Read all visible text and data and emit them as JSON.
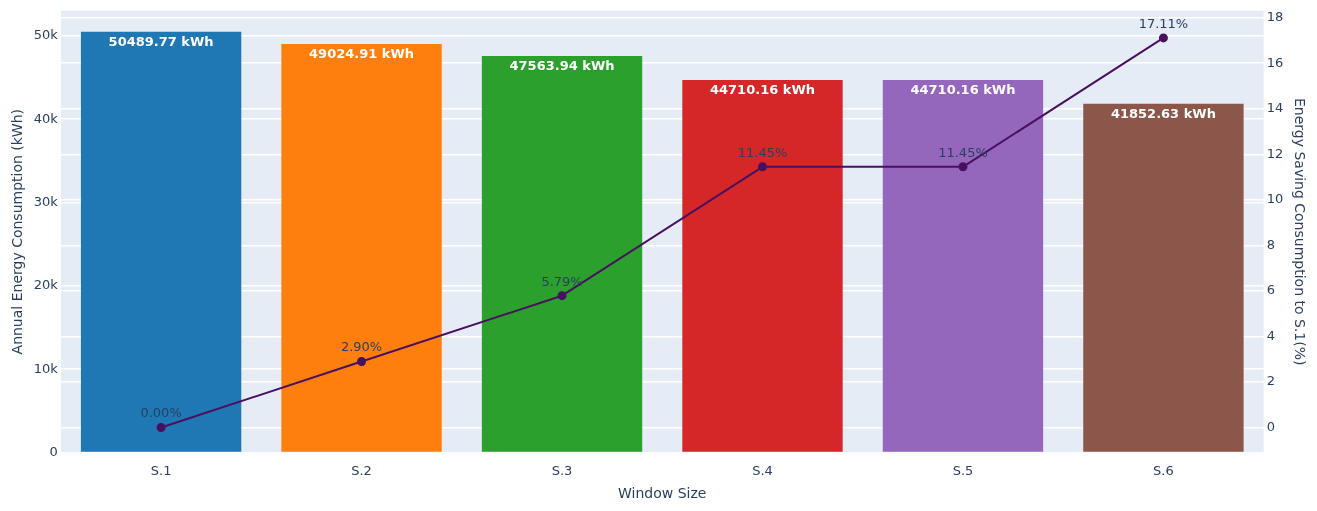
{
  "chart_data": {
    "type": "bar",
    "xlabel": "Window Size",
    "ylabel": "Annual Energy Consumption (kWh)",
    "y2label": "Energy Saving Consumption to S.1(%)",
    "categories": [
      "S.1",
      "S.2",
      "S.3",
      "S.4",
      "S.5",
      "S.6"
    ],
    "series": [
      {
        "colors": [
          "#1f77b4",
          "#ff7f0e",
          "#2ca02c",
          "#d62728",
          "#9467bd",
          "#8c564b"
        ],
        "values": [
          50489.77,
          49024.91,
          47563.94,
          44710.16,
          44710.16,
          41852.63
        ],
        "value_labels": [
          "50489.77 kWh",
          "49024.91 kWh",
          "47563.94 kWh",
          "44710.16 kWh",
          "44710.16 kWh",
          "41852.63 kWh"
        ]
      },
      {
        "type": "line",
        "axis": "y2",
        "color": "#4a1060",
        "values": [
          0.0,
          2.9,
          5.79,
          11.45,
          11.45,
          17.11
        ],
        "value_labels": [
          "0.00%",
          "2.90%",
          "5.79%",
          "11.45%",
          "11.45%",
          "17.11%"
        ]
      }
    ],
    "ylim": [
      0,
      53000
    ],
    "yticks": [
      {
        "value": 0,
        "label": "0"
      },
      {
        "value": 10000,
        "label": "10k"
      },
      {
        "value": 20000,
        "label": "20k"
      },
      {
        "value": 30000,
        "label": "30k"
      },
      {
        "value": 40000,
        "label": "40k"
      },
      {
        "value": 50000,
        "label": "50k"
      }
    ],
    "y2lim": [
      -1.1,
      18.3
    ],
    "y2ticks": [
      0,
      2,
      4,
      6,
      8,
      10,
      12,
      14,
      16,
      18
    ],
    "grid": true,
    "marker": "circle",
    "line_style": "solid"
  }
}
